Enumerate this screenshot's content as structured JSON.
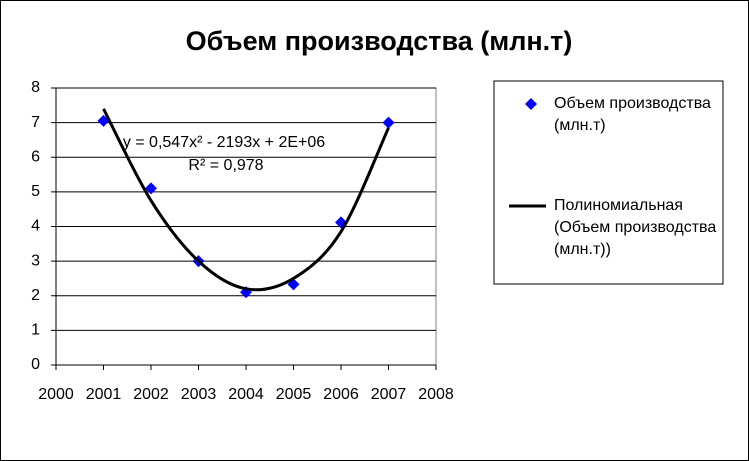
{
  "chart_data": {
    "type": "scatter",
    "title": "Объем производства  (млн.т)",
    "annotations": [
      "y = 0,547x² - 2193x + 2E+06",
      "R² = 0,978"
    ],
    "xlim": [
      2000,
      2008
    ],
    "xticks": [
      2000,
      2001,
      2002,
      2003,
      2004,
      2005,
      2006,
      2007,
      2008
    ],
    "ylim": [
      0,
      8
    ],
    "yticks": [
      0,
      1,
      2,
      3,
      4,
      5,
      6,
      7,
      8
    ],
    "grid": true,
    "series": [
      {
        "name": "Объем производства (млн.т)",
        "color": "#0000ff",
        "style": "markers",
        "x": [
          2001,
          2002,
          2003,
          2004,
          2005,
          2006,
          2007
        ],
        "values": [
          7.05,
          5.1,
          3.0,
          2.1,
          2.33,
          4.12,
          7.0
        ]
      },
      {
        "name": "Полиномиальная (Объем производства (млн.т))",
        "color": "#000000",
        "style": "line",
        "x": [
          2001,
          2002,
          2003,
          2004,
          2005,
          2006,
          2007
        ],
        "values": [
          7.4,
          4.75,
          3.0,
          2.2,
          2.5,
          3.85,
          6.85
        ]
      }
    ]
  }
}
